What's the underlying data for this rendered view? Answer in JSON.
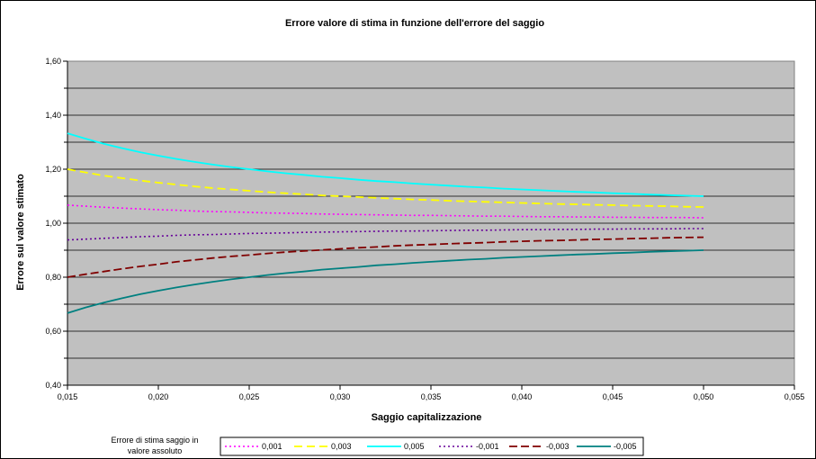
{
  "chart_data": {
    "type": "line",
    "title": "Errore valore di stima in funzione dell'errore del saggio",
    "xlabel": "Saggio capitalizzazione",
    "ylabel": "Errore sul valore stimato",
    "xlim": [
      0.015,
      0.055
    ],
    "ylim": [
      0.4,
      1.6
    ],
    "xticks": [
      0.015,
      0.02,
      0.025,
      0.03,
      0.035,
      0.04,
      0.045,
      0.05,
      0.055
    ],
    "yticks": [
      0.4,
      0.6,
      0.8,
      1.0,
      1.2,
      1.4,
      1.6
    ],
    "xtick_labels": [
      "0,015",
      "0,020",
      "0,025",
      "0,030",
      "0,035",
      "0,040",
      "0,045",
      "0,050",
      "0,055"
    ],
    "ytick_labels": [
      "0,40",
      "0,60",
      "0,80",
      "1,00",
      "1,20",
      "1,40",
      "1,60"
    ],
    "grid": "horizontal",
    "legend_title_lines": [
      "Errore di stima saggio in",
      "valore assoluto"
    ],
    "legend_position": "bottom",
    "x": [
      0.015,
      0.016,
      0.017,
      0.018,
      0.019,
      0.02,
      0.021,
      0.022,
      0.023,
      0.024,
      0.025,
      0.026,
      0.027,
      0.028,
      0.029,
      0.03,
      0.031,
      0.032,
      0.033,
      0.034,
      0.035,
      0.036,
      0.037,
      0.038,
      0.039,
      0.04,
      0.041,
      0.042,
      0.043,
      0.044,
      0.045,
      0.046,
      0.047,
      0.048,
      0.049,
      0.05
    ],
    "series": [
      {
        "name": "0,001",
        "color": "#ff00ff",
        "dash": "2,3",
        "width": 1.6,
        "values": [
          1.067,
          1.063,
          1.059,
          1.056,
          1.053,
          1.05,
          1.048,
          1.045,
          1.043,
          1.042,
          1.04,
          1.038,
          1.037,
          1.036,
          1.034,
          1.033,
          1.032,
          1.031,
          1.03,
          1.029,
          1.029,
          1.028,
          1.027,
          1.026,
          1.026,
          1.025,
          1.024,
          1.024,
          1.023,
          1.023,
          1.022,
          1.022,
          1.021,
          1.021,
          1.021,
          1.02
        ]
      },
      {
        "name": "0,003",
        "color": "#ffff00",
        "dash": "9,5",
        "width": 1.8,
        "values": [
          1.2,
          1.188,
          1.176,
          1.167,
          1.158,
          1.15,
          1.143,
          1.136,
          1.13,
          1.125,
          1.12,
          1.115,
          1.111,
          1.107,
          1.103,
          1.1,
          1.097,
          1.094,
          1.091,
          1.088,
          1.086,
          1.083,
          1.081,
          1.079,
          1.077,
          1.075,
          1.073,
          1.071,
          1.07,
          1.068,
          1.067,
          1.065,
          1.064,
          1.063,
          1.061,
          1.06
        ]
      },
      {
        "name": "0,005",
        "color": "#00ffff",
        "dash": "",
        "width": 1.8,
        "values": [
          1.333,
          1.313,
          1.294,
          1.278,
          1.263,
          1.25,
          1.238,
          1.227,
          1.217,
          1.208,
          1.2,
          1.192,
          1.185,
          1.179,
          1.172,
          1.167,
          1.161,
          1.156,
          1.152,
          1.147,
          1.143,
          1.139,
          1.135,
          1.132,
          1.128,
          1.125,
          1.122,
          1.119,
          1.116,
          1.114,
          1.111,
          1.109,
          1.106,
          1.104,
          1.102,
          1.1
        ]
      },
      {
        "name": "-0,001",
        "color": "#660099",
        "dash": "2,3",
        "width": 1.6,
        "values": [
          0.938,
          0.941,
          0.944,
          0.947,
          0.95,
          0.952,
          0.955,
          0.957,
          0.958,
          0.96,
          0.962,
          0.963,
          0.964,
          0.966,
          0.967,
          0.968,
          0.969,
          0.97,
          0.971,
          0.971,
          0.972,
          0.973,
          0.974,
          0.974,
          0.975,
          0.976,
          0.976,
          0.977,
          0.977,
          0.978,
          0.978,
          0.979,
          0.979,
          0.979,
          0.98,
          0.98
        ]
      },
      {
        "name": "-0,003",
        "color": "#800000",
        "dash": "9,4",
        "width": 1.8,
        "values": [
          0.8,
          0.811,
          0.821,
          0.831,
          0.84,
          0.848,
          0.857,
          0.864,
          0.871,
          0.877,
          0.882,
          0.888,
          0.893,
          0.897,
          0.901,
          0.905,
          0.909,
          0.912,
          0.916,
          0.919,
          0.921,
          0.924,
          0.926,
          0.928,
          0.931,
          0.933,
          0.935,
          0.936,
          0.938,
          0.94,
          0.941,
          0.943,
          0.944,
          0.946,
          0.947,
          0.948
        ]
      },
      {
        "name": "-0,005",
        "color": "#008080",
        "dash": "",
        "width": 1.8,
        "values": [
          0.667,
          0.688,
          0.706,
          0.722,
          0.737,
          0.75,
          0.762,
          0.773,
          0.783,
          0.792,
          0.8,
          0.808,
          0.815,
          0.821,
          0.828,
          0.833,
          0.838,
          0.844,
          0.848,
          0.853,
          0.857,
          0.861,
          0.865,
          0.868,
          0.872,
          0.875,
          0.878,
          0.881,
          0.884,
          0.886,
          0.889,
          0.891,
          0.894,
          0.896,
          0.898,
          0.9
        ]
      }
    ]
  }
}
